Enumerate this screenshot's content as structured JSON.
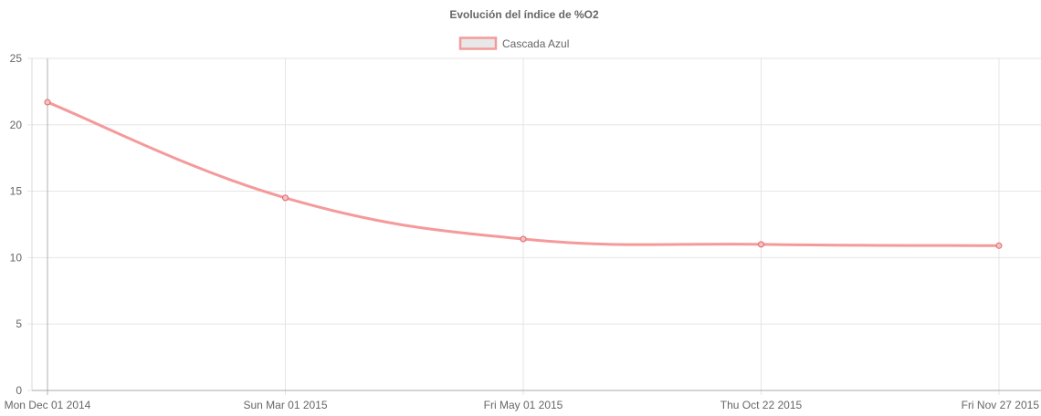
{
  "chart_data": {
    "type": "line",
    "title": "Evolución del índice de %O2",
    "xlabel": "",
    "ylabel": "",
    "ylim": [
      0,
      25
    ],
    "yticks": [
      "0",
      "5",
      "10",
      "15",
      "20",
      "25"
    ],
    "categories": [
      "Mon Dec 01 2014",
      "Sun Mar 01 2015",
      "Fri May 01 2015",
      "Thu Oct 22 2015",
      "Fri Nov 27 2015"
    ],
    "series": [
      {
        "name": "Cascada Azul",
        "values": [
          21.7,
          14.5,
          11.4,
          11.0,
          10.9
        ],
        "color": "#f59a9a",
        "point_color": "#e0656b",
        "fill": "#e8e8e8"
      }
    ],
    "grid": true,
    "legend_position": "top"
  }
}
